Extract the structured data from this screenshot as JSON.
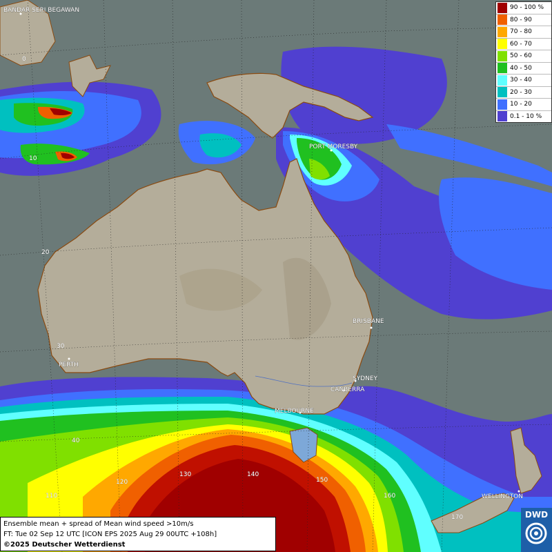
{
  "cities": [
    {
      "name": "BANDAR SERI BEGAWAN"
    },
    {
      "name": "PORT MORESBY"
    },
    {
      "name": "BRISBANE"
    },
    {
      "name": "PERTH"
    },
    {
      "name": "SYDNEY"
    },
    {
      "name": "CANBERRA"
    },
    {
      "name": "MELBOURNE"
    },
    {
      "name": "WELLINGTON"
    }
  ],
  "grid_labels": {
    "lat": [
      "0",
      "10",
      "20",
      "30",
      "40"
    ],
    "lon": [
      "110",
      "120",
      "130",
      "140",
      "150",
      "160",
      "170"
    ]
  },
  "legend": {
    "items": [
      {
        "label": "90 - 100 %",
        "color": "#a00000"
      },
      {
        "label": "80 - 90",
        "color": "#f06000"
      },
      {
        "label": "70 - 80",
        "color": "#ffa800"
      },
      {
        "label": "60 - 70",
        "color": "#ffff00"
      },
      {
        "label": "50 - 60",
        "color": "#80e000"
      },
      {
        "label": "40 - 50",
        "color": "#20c020"
      },
      {
        "label": "30 - 40",
        "color": "#60ffff"
      },
      {
        "label": "20 - 30",
        "color": "#00c0c0"
      },
      {
        "label": "10 - 20",
        "color": "#4070ff"
      },
      {
        "label": "0.1 - 10 %",
        "color": "#5040d0"
      }
    ]
  },
  "info": {
    "line1": "Ensemble mean + spread of Mean wind speed >10m/s",
    "line2": "FT: Tue 02 Sep 12 UTC [ICON EPS 2025 Aug 29 00UTC +108h]",
    "line3": "©2025 Deutscher Wetterdienst"
  },
  "logo": {
    "text": "DWD"
  },
  "colors": {
    "ocean": "#6b7a78",
    "land": "#b4ad9a",
    "coast": "#8a4a10"
  }
}
